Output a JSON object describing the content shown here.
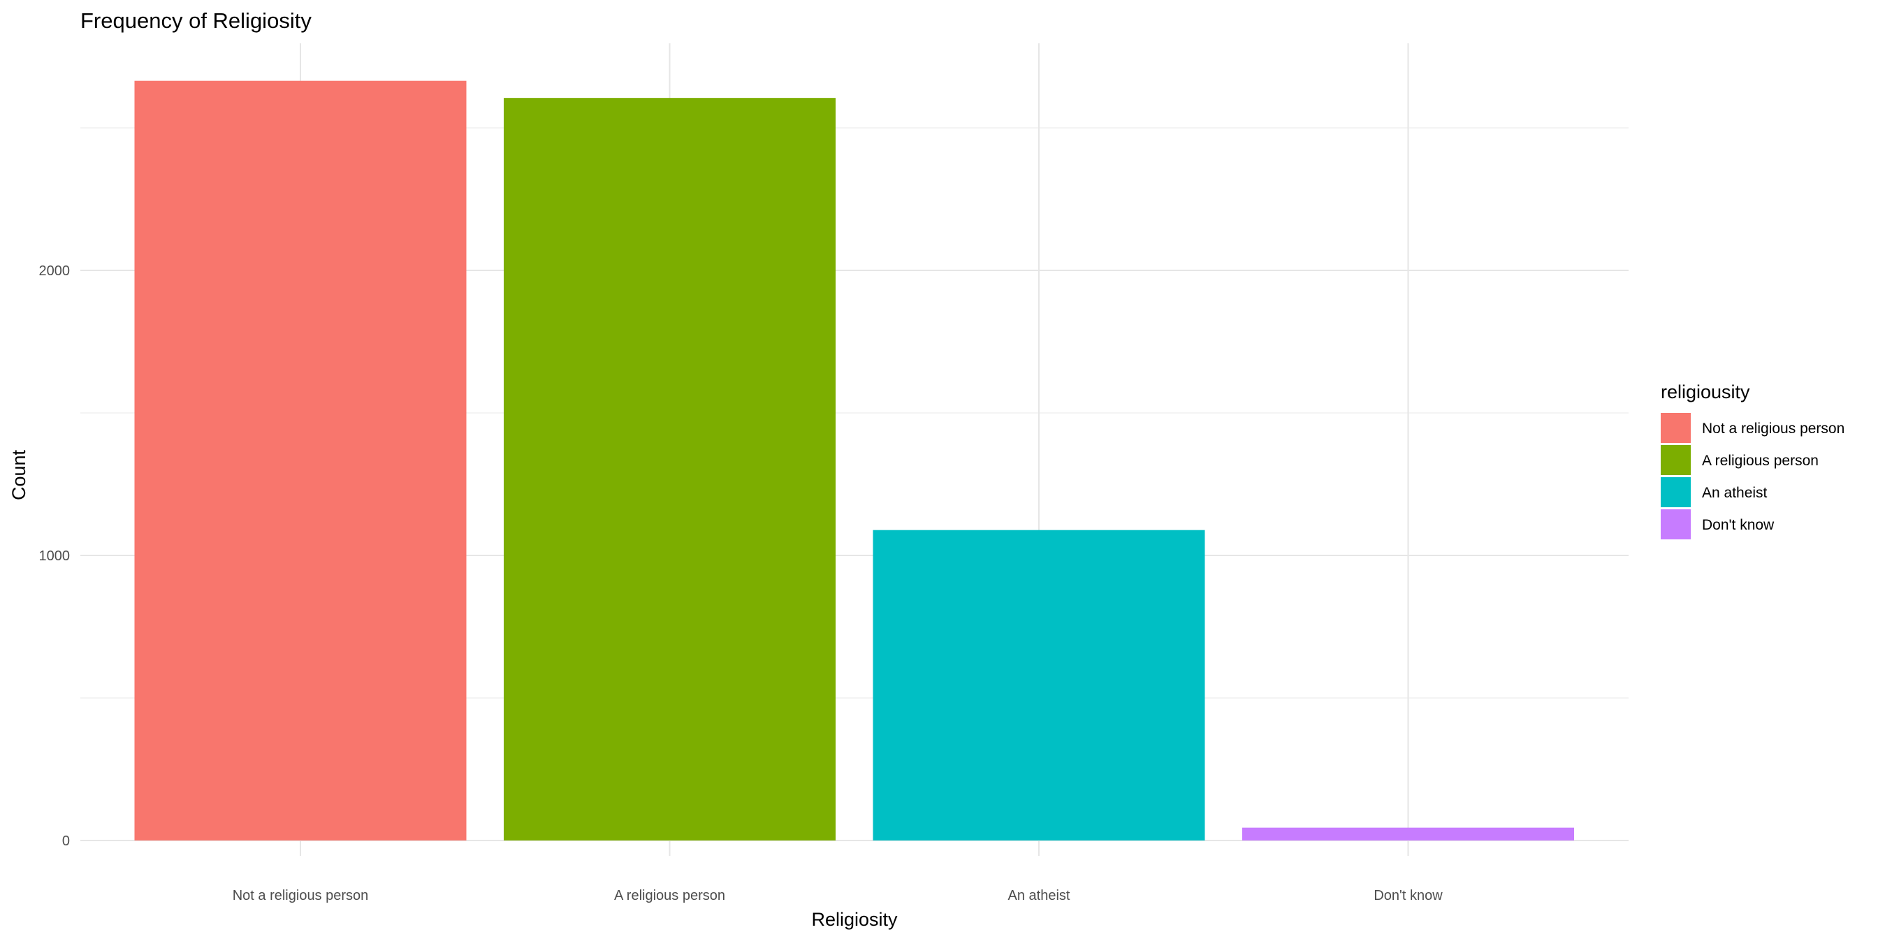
{
  "chart_data": {
    "type": "bar",
    "title": "Frequency of Religiosity",
    "xlabel": "Religiosity",
    "ylabel": "Count",
    "categories": [
      "Not a religious person",
      "A religious person",
      "An atheist",
      "Don't know"
    ],
    "values": [
      2665,
      2605,
      1089,
      45
    ],
    "colors": [
      "#F8766D",
      "#7CAE00",
      "#00BFC4",
      "#C77CFF"
    ],
    "ylim": [
      0,
      2800
    ],
    "yticks": [
      0,
      1000,
      2000
    ],
    "ytick_labels": [
      "0",
      "1000",
      "2000"
    ],
    "grid": true,
    "legend": {
      "title": "religiousity",
      "position": "right",
      "entries": [
        "Not a religious person",
        "A religious person",
        "An atheist",
        "Don't know"
      ]
    }
  }
}
